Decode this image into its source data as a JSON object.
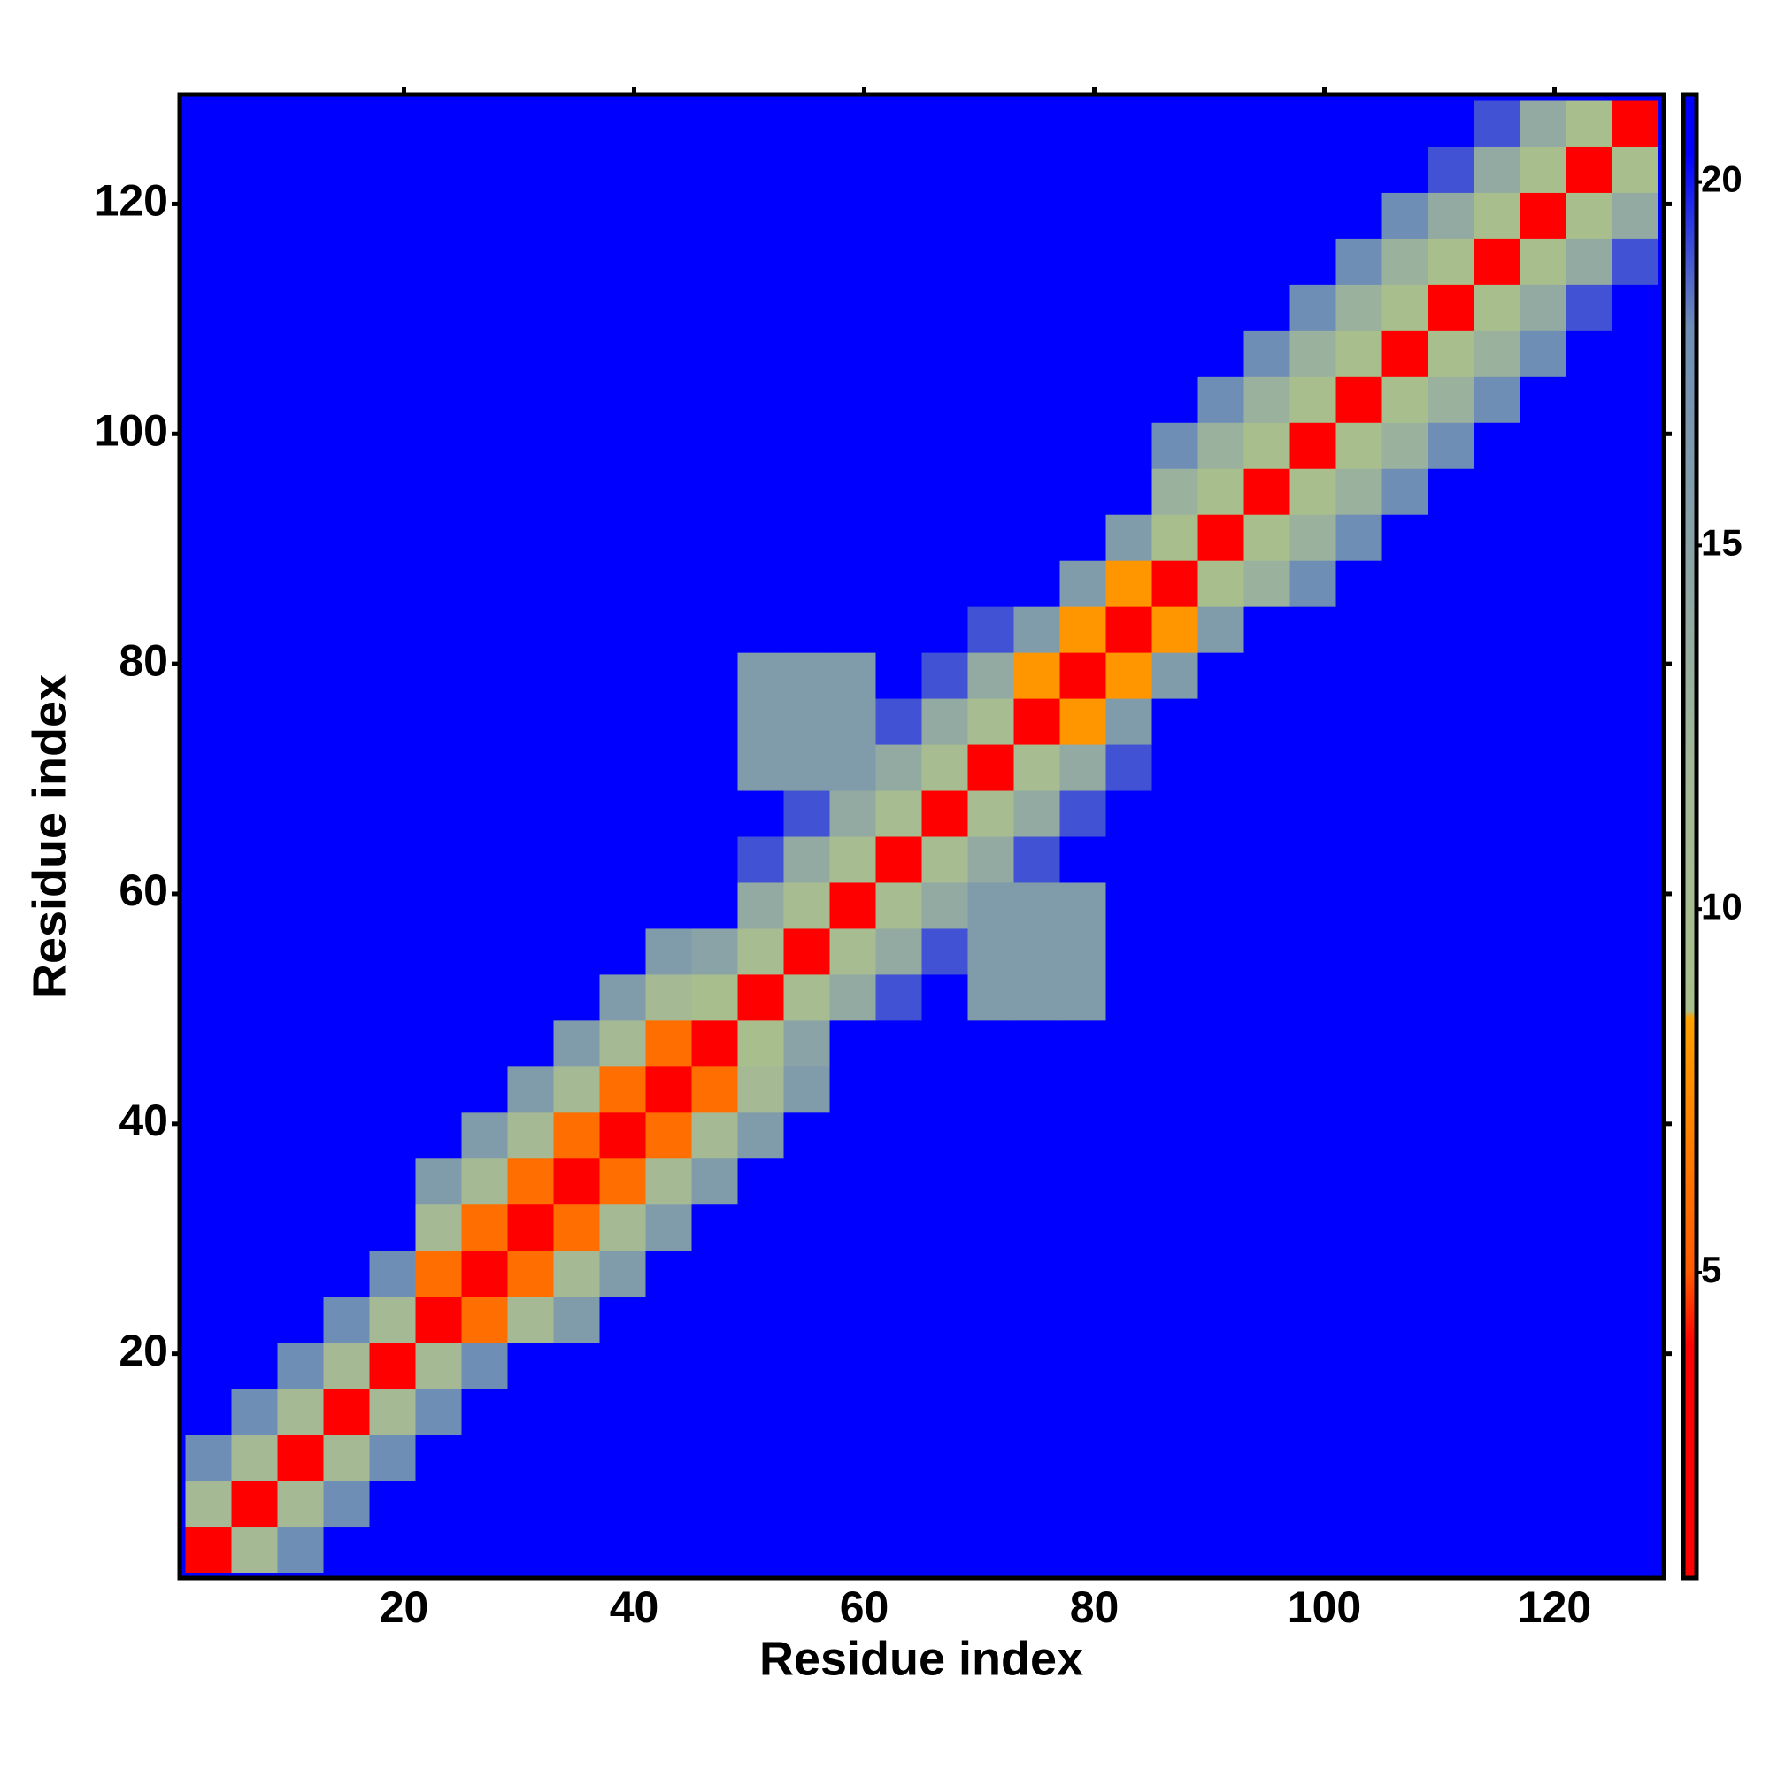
{
  "chart_data": {
    "type": "heatmap",
    "xlabel": "Residue index",
    "ylabel": "Residue index",
    "x": [
      3,
      7,
      11,
      15,
      19,
      23,
      27,
      31,
      35,
      39,
      43,
      47,
      51,
      55,
      59,
      63,
      67,
      71,
      75,
      79,
      83,
      87,
      91,
      95,
      99,
      103,
      107,
      111,
      115,
      119,
      123,
      127
    ],
    "y": [
      3,
      7,
      11,
      15,
      19,
      23,
      27,
      31,
      35,
      39,
      43,
      47,
      51,
      55,
      59,
      63,
      67,
      71,
      75,
      79,
      83,
      87,
      91,
      95,
      99,
      103,
      107,
      111,
      115,
      119,
      123,
      127
    ],
    "xlim": [
      0.5,
      129.5
    ],
    "ylim": [
      0.5,
      129.5
    ],
    "xticks": [
      20,
      40,
      60,
      80,
      100,
      120
    ],
    "yticks": [
      20,
      40,
      60,
      80,
      100,
      120
    ],
    "zlim": [
      0.8,
      21.2
    ],
    "zticks": [
      5,
      10,
      15,
      20
    ],
    "background": "#0000ff",
    "colorscale": [
      [
        0.8,
        "#ff0000"
      ],
      [
        4,
        "#ff0000"
      ],
      [
        5,
        "#ff5a00"
      ],
      [
        8.5,
        "#ffa000"
      ],
      [
        8.6,
        "#a9c08c"
      ],
      [
        12,
        "#a3b898"
      ],
      [
        18,
        "#6f8eb5"
      ],
      [
        20.4,
        "#0000ff"
      ],
      [
        21.2,
        "#0000ff"
      ]
    ],
    "z": [
      [
        2,
        11,
        18,
        21,
        21,
        21,
        21,
        21,
        21,
        21,
        21,
        21,
        21,
        21,
        21,
        21,
        21,
        21,
        21,
        21,
        21,
        21,
        21,
        21,
        21,
        21,
        21,
        21,
        21,
        21,
        21,
        21
      ],
      [
        11,
        2,
        11,
        18,
        21,
        21,
        21,
        21,
        21,
        21,
        21,
        21,
        21,
        21,
        21,
        21,
        21,
        21,
        21,
        21,
        21,
        21,
        21,
        21,
        21,
        21,
        21,
        21,
        21,
        21,
        21,
        21
      ],
      [
        18,
        11,
        2,
        11,
        18,
        21,
        21,
        21,
        21,
        21,
        21,
        21,
        21,
        21,
        21,
        21,
        21,
        21,
        21,
        21,
        21,
        21,
        21,
        21,
        21,
        21,
        21,
        21,
        21,
        21,
        21,
        21
      ],
      [
        21,
        18,
        11,
        2,
        11,
        18,
        21,
        21,
        21,
        21,
        21,
        21,
        21,
        21,
        21,
        21,
        21,
        21,
        21,
        21,
        21,
        21,
        21,
        21,
        21,
        21,
        21,
        21,
        21,
        21,
        21,
        21
      ],
      [
        21,
        21,
        18,
        11,
        2,
        11,
        18,
        21,
        21,
        21,
        21,
        21,
        21,
        21,
        21,
        21,
        21,
        21,
        21,
        21,
        21,
        21,
        21,
        21,
        21,
        21,
        21,
        21,
        21,
        21,
        21,
        21
      ],
      [
        21,
        21,
        21,
        18,
        11,
        2,
        6,
        11,
        16,
        21,
        21,
        21,
        21,
        21,
        21,
        21,
        21,
        21,
        21,
        21,
        21,
        21,
        21,
        21,
        21,
        21,
        21,
        21,
        21,
        21,
        21,
        21
      ],
      [
        21,
        21,
        21,
        21,
        18,
        6,
        2,
        6,
        11,
        16,
        21,
        21,
        21,
        21,
        21,
        21,
        21,
        21,
        21,
        21,
        21,
        21,
        21,
        21,
        21,
        21,
        21,
        21,
        21,
        21,
        21,
        21
      ],
      [
        21,
        21,
        21,
        21,
        21,
        11,
        6,
        2,
        6,
        11,
        16,
        21,
        21,
        21,
        21,
        21,
        21,
        21,
        21,
        21,
        21,
        21,
        21,
        21,
        21,
        21,
        21,
        21,
        21,
        21,
        21,
        21
      ],
      [
        21,
        21,
        21,
        21,
        21,
        16,
        11,
        6,
        2,
        6,
        11,
        16,
        21,
        21,
        21,
        21,
        21,
        21,
        21,
        21,
        21,
        21,
        21,
        21,
        21,
        21,
        21,
        21,
        21,
        21,
        21,
        21
      ],
      [
        21,
        21,
        21,
        21,
        21,
        21,
        16,
        11,
        6,
        2,
        6,
        11,
        16,
        21,
        21,
        21,
        21,
        21,
        21,
        21,
        21,
        21,
        21,
        21,
        21,
        21,
        21,
        21,
        21,
        21,
        21,
        21
      ],
      [
        21,
        21,
        21,
        21,
        21,
        21,
        21,
        16,
        11,
        6,
        2,
        6,
        11,
        16,
        21,
        21,
        21,
        21,
        21,
        21,
        21,
        21,
        21,
        21,
        21,
        21,
        21,
        21,
        21,
        21,
        21,
        21
      ],
      [
        21,
        21,
        21,
        21,
        21,
        21,
        21,
        21,
        16,
        11,
        6,
        2,
        9,
        15,
        21,
        21,
        21,
        21,
        21,
        21,
        21,
        21,
        21,
        21,
        21,
        21,
        21,
        21,
        21,
        21,
        21,
        21
      ],
      [
        21,
        21,
        21,
        21,
        21,
        21,
        21,
        21,
        21,
        16,
        11,
        9,
        2,
        10,
        14,
        19,
        21,
        16,
        16,
        16,
        21,
        21,
        21,
        21,
        21,
        21,
        21,
        21,
        21,
        21,
        21,
        21
      ],
      [
        21,
        21,
        21,
        21,
        21,
        21,
        21,
        21,
        21,
        21,
        16,
        15,
        10,
        2,
        10,
        14,
        19,
        16,
        16,
        16,
        21,
        21,
        21,
        21,
        21,
        21,
        21,
        21,
        21,
        21,
        21,
        21
      ],
      [
        21,
        21,
        21,
        21,
        21,
        21,
        21,
        21,
        21,
        21,
        21,
        21,
        14,
        10,
        2,
        10,
        14,
        16,
        16,
        16,
        21,
        21,
        21,
        21,
        21,
        21,
        21,
        21,
        21,
        21,
        21,
        21
      ],
      [
        21,
        21,
        21,
        21,
        21,
        21,
        21,
        21,
        21,
        21,
        21,
        21,
        19,
        14,
        10,
        2,
        10,
        14,
        19,
        21,
        21,
        21,
        21,
        21,
        21,
        21,
        21,
        21,
        21,
        21,
        21,
        21
      ],
      [
        21,
        21,
        21,
        21,
        21,
        21,
        21,
        21,
        21,
        21,
        21,
        21,
        21,
        19,
        14,
        10,
        2,
        10,
        14,
        19,
        21,
        21,
        21,
        21,
        21,
        21,
        21,
        21,
        21,
        21,
        21,
        21
      ],
      [
        21,
        21,
        21,
        21,
        21,
        21,
        21,
        21,
        21,
        21,
        21,
        21,
        16,
        16,
        16,
        14,
        10,
        2,
        10,
        14,
        19,
        21,
        21,
        21,
        21,
        21,
        21,
        21,
        21,
        21,
        21,
        21
      ],
      [
        21,
        21,
        21,
        21,
        21,
        21,
        21,
        21,
        21,
        21,
        21,
        21,
        16,
        16,
        16,
        19,
        14,
        10,
        2,
        8,
        16,
        21,
        21,
        21,
        21,
        21,
        21,
        21,
        21,
        21,
        21,
        21
      ],
      [
        21,
        21,
        21,
        21,
        21,
        21,
        21,
        21,
        21,
        21,
        21,
        21,
        16,
        16,
        16,
        21,
        19,
        14,
        8,
        2,
        8,
        16,
        21,
        21,
        21,
        21,
        21,
        21,
        21,
        21,
        21,
        21
      ],
      [
        21,
        21,
        21,
        21,
        21,
        21,
        21,
        21,
        21,
        21,
        21,
        21,
        21,
        21,
        21,
        21,
        21,
        19,
        16,
        8,
        2,
        8,
        16,
        21,
        21,
        21,
        21,
        21,
        21,
        21,
        21,
        21
      ],
      [
        21,
        21,
        21,
        21,
        21,
        21,
        21,
        21,
        21,
        21,
        21,
        21,
        21,
        21,
        21,
        21,
        21,
        21,
        21,
        16,
        8,
        2,
        9,
        13,
        18,
        21,
        21,
        21,
        21,
        21,
        21,
        21
      ],
      [
        21,
        21,
        21,
        21,
        21,
        21,
        21,
        21,
        21,
        21,
        21,
        21,
        21,
        21,
        21,
        21,
        21,
        21,
        21,
        21,
        16,
        9,
        2,
        9,
        13,
        18,
        21,
        21,
        21,
        21,
        21,
        21
      ],
      [
        21,
        21,
        21,
        21,
        21,
        21,
        21,
        21,
        21,
        21,
        21,
        21,
        21,
        21,
        21,
        21,
        21,
        21,
        21,
        21,
        21,
        13,
        9,
        2,
        9,
        13,
        18,
        21,
        21,
        21,
        21,
        21
      ],
      [
        21,
        21,
        21,
        21,
        21,
        21,
        21,
        21,
        21,
        21,
        21,
        21,
        21,
        21,
        21,
        21,
        21,
        21,
        21,
        21,
        21,
        18,
        13,
        9,
        2,
        9,
        13,
        18,
        21,
        21,
        21,
        21
      ],
      [
        21,
        21,
        21,
        21,
        21,
        21,
        21,
        21,
        21,
        21,
        21,
        21,
        21,
        21,
        21,
        21,
        21,
        21,
        21,
        21,
        21,
        21,
        18,
        13,
        9,
        2,
        9,
        13,
        18,
        21,
        21,
        21
      ],
      [
        21,
        21,
        21,
        21,
        21,
        21,
        21,
        21,
        21,
        21,
        21,
        21,
        21,
        21,
        21,
        21,
        21,
        21,
        21,
        21,
        21,
        21,
        21,
        18,
        13,
        9,
        2,
        9,
        13,
        18,
        21,
        21
      ],
      [
        21,
        21,
        21,
        21,
        21,
        21,
        21,
        21,
        21,
        21,
        21,
        21,
        21,
        21,
        21,
        21,
        21,
        21,
        21,
        21,
        21,
        21,
        21,
        21,
        18,
        13,
        9,
        2,
        9,
        14,
        19,
        21
      ],
      [
        21,
        21,
        21,
        21,
        21,
        21,
        21,
        21,
        21,
        21,
        21,
        21,
        21,
        21,
        21,
        21,
        21,
        21,
        21,
        21,
        21,
        21,
        21,
        21,
        21,
        18,
        13,
        9,
        2,
        9,
        14,
        19
      ],
      [
        21,
        21,
        21,
        21,
        21,
        21,
        21,
        21,
        21,
        21,
        21,
        21,
        21,
        21,
        21,
        21,
        21,
        21,
        21,
        21,
        21,
        21,
        21,
        21,
        21,
        21,
        18,
        14,
        9,
        2,
        9,
        14
      ],
      [
        21,
        21,
        21,
        21,
        21,
        21,
        21,
        21,
        21,
        21,
        21,
        21,
        21,
        21,
        21,
        21,
        21,
        21,
        21,
        21,
        21,
        21,
        21,
        21,
        21,
        21,
        21,
        19,
        14,
        9,
        2,
        9
      ],
      [
        21,
        21,
        21,
        21,
        21,
        21,
        21,
        21,
        21,
        21,
        21,
        21,
        21,
        21,
        21,
        21,
        21,
        21,
        21,
        21,
        21,
        21,
        21,
        21,
        21,
        21,
        21,
        21,
        19,
        14,
        9,
        2
      ]
    ]
  }
}
